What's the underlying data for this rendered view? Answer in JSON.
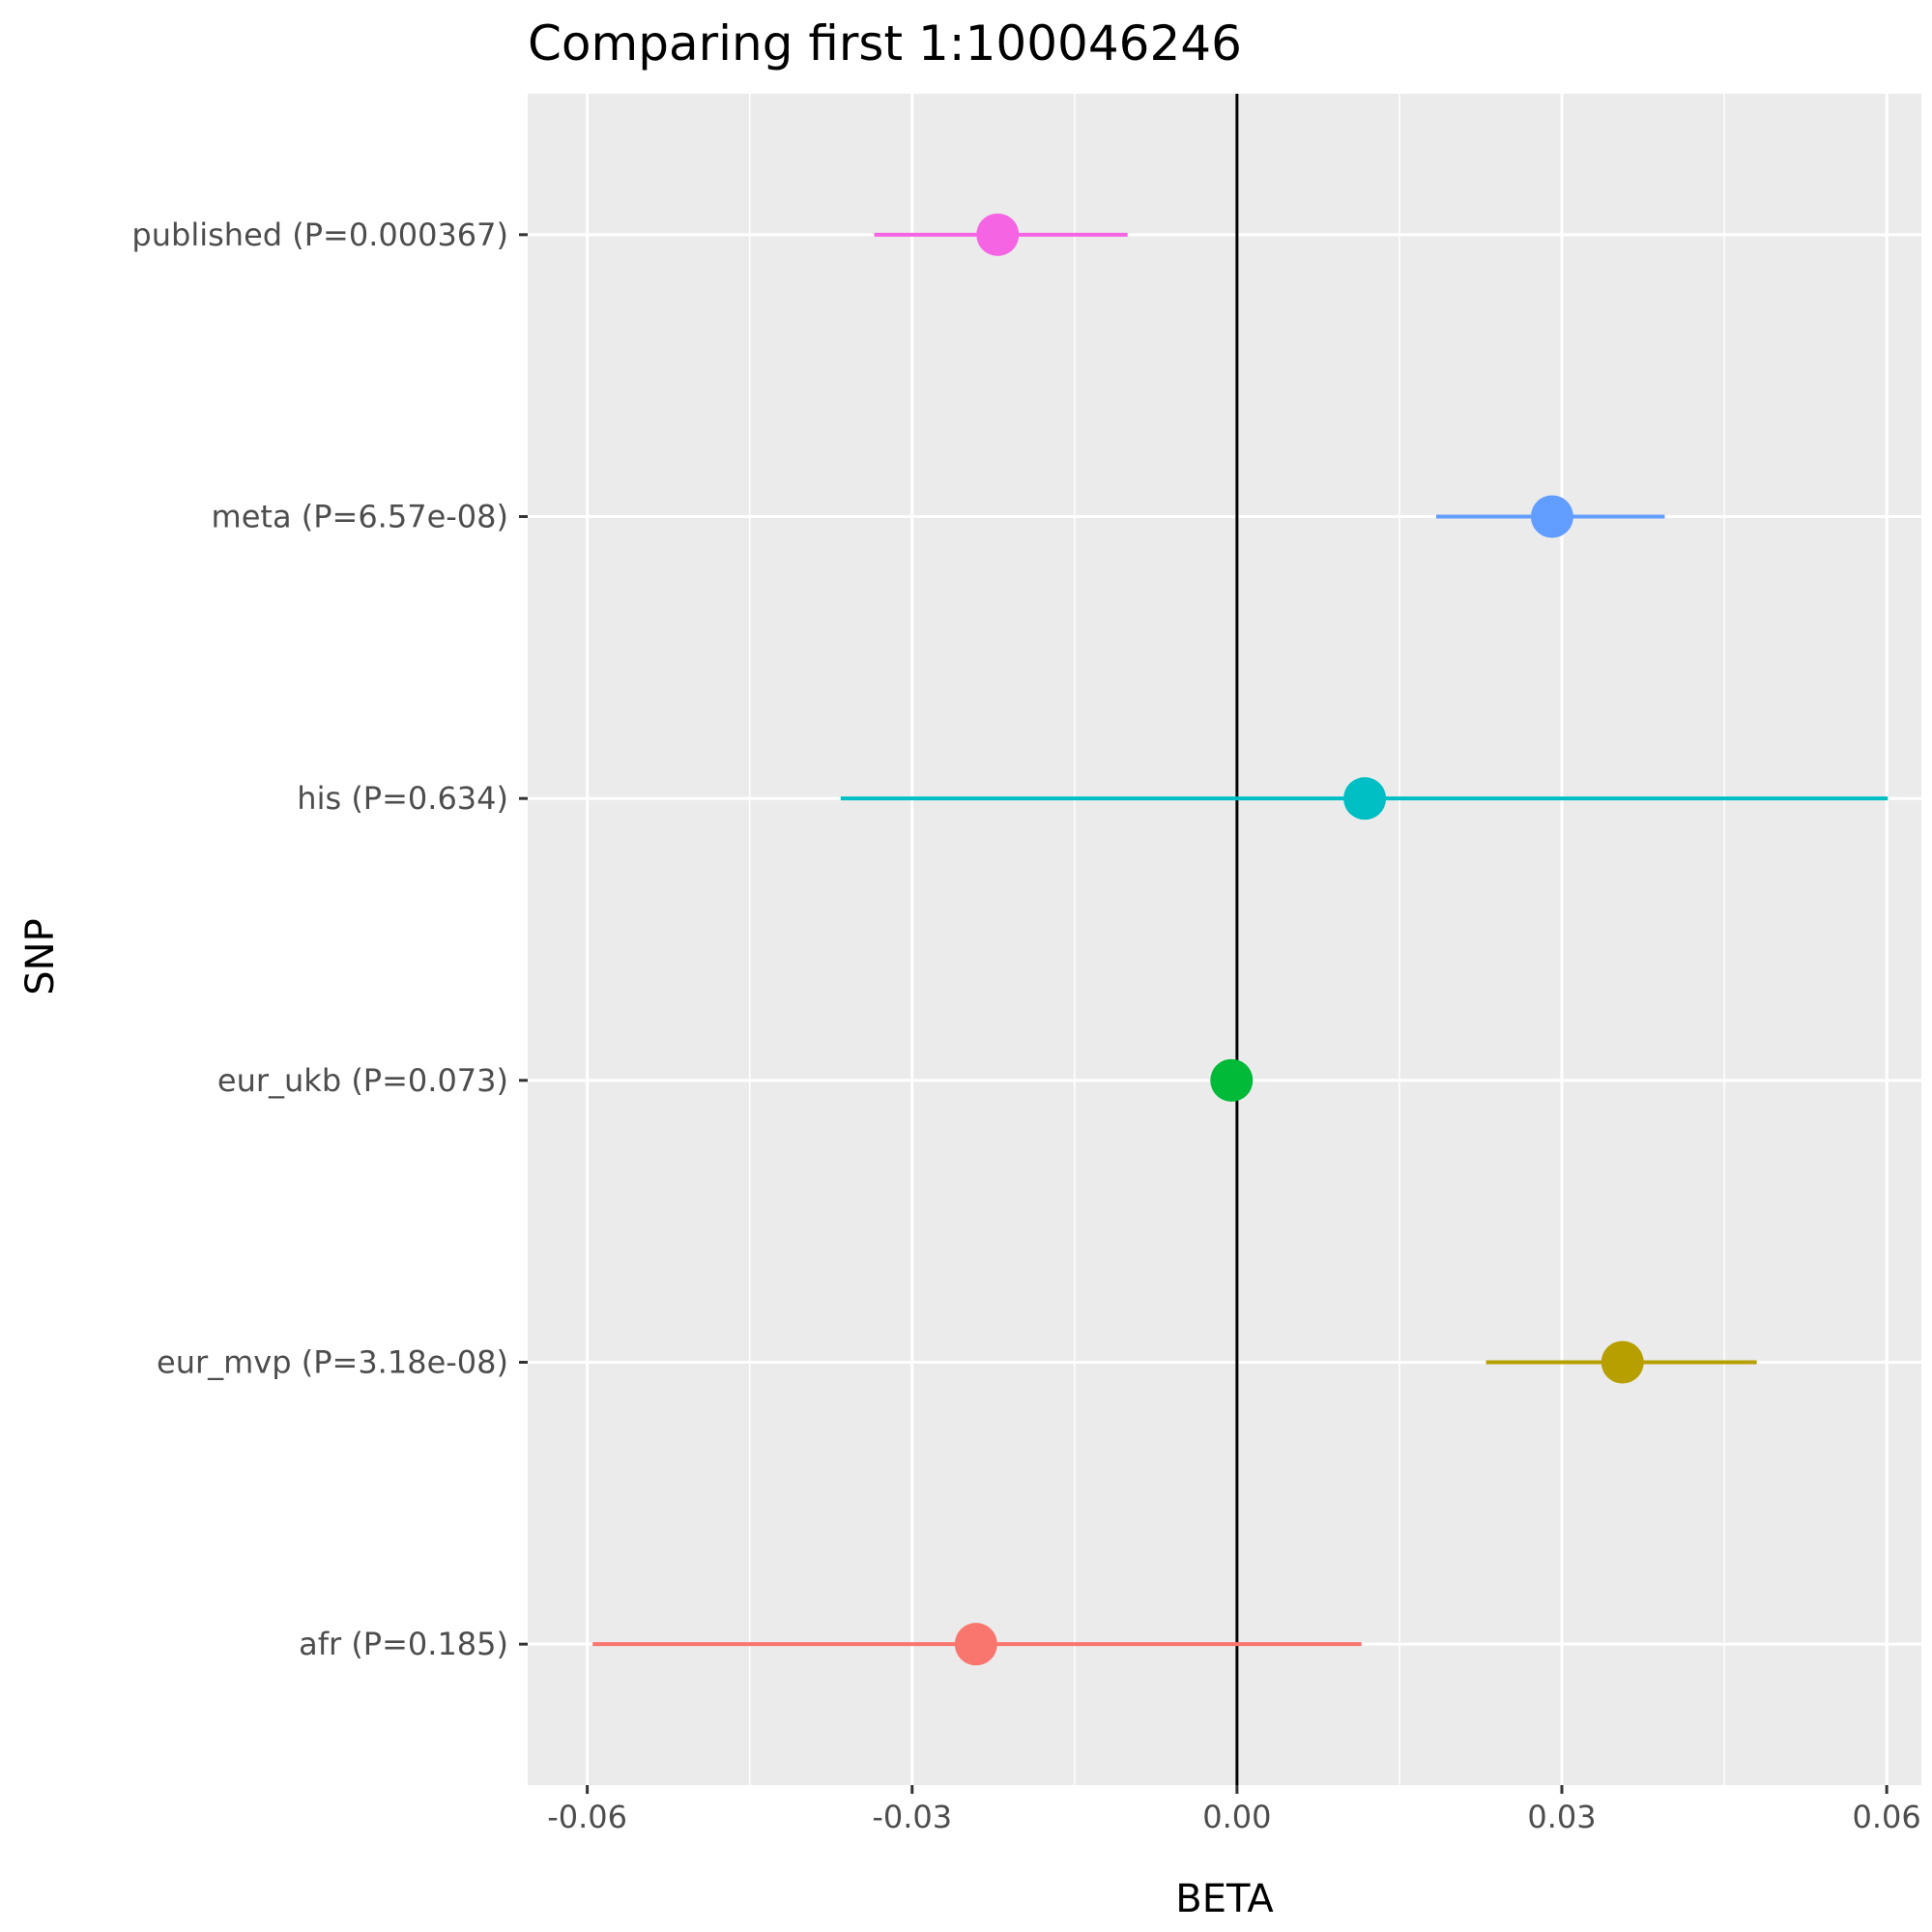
{
  "chart_data": {
    "type": "forest",
    "title": "Comparing first 1:100046246",
    "xlabel": "BETA",
    "ylabel": "SNP",
    "xlim": [
      -0.0655,
      0.0632
    ],
    "xticks": [
      -0.06,
      -0.03,
      0.0,
      0.03,
      0.06
    ],
    "xtick_labels": [
      "-0.06",
      "-0.03",
      "0.00",
      "0.03",
      "0.06"
    ],
    "reference_line": 0,
    "grid": true,
    "legend": "none",
    "rows": [
      {
        "label": "published (P=0.000367)",
        "beta": -0.0221,
        "lo": -0.0335,
        "hi": -0.0101,
        "color": "#f564e3"
      },
      {
        "label": "meta (P=6.57e-08)",
        "beta": 0.0291,
        "lo": 0.0184,
        "hi": 0.0395,
        "color": "#619cff"
      },
      {
        "label": "his (P=0.634)",
        "beta": 0.0118,
        "lo": -0.0366,
        "hi": 0.0601,
        "color": "#00bfc4"
      },
      {
        "label": "eur_ukb (P=0.073)",
        "beta": -0.0005,
        "lo": -0.0006,
        "hi": -0.0004,
        "color": "#00ba38"
      },
      {
        "label": "eur_mvp (P=3.18e-08)",
        "beta": 0.0356,
        "lo": 0.023,
        "hi": 0.048,
        "color": "#b79f00"
      },
      {
        "label": "afr (P=0.185)",
        "beta": -0.0241,
        "lo": -0.0595,
        "hi": 0.0115,
        "color": "#f8766d"
      }
    ]
  }
}
